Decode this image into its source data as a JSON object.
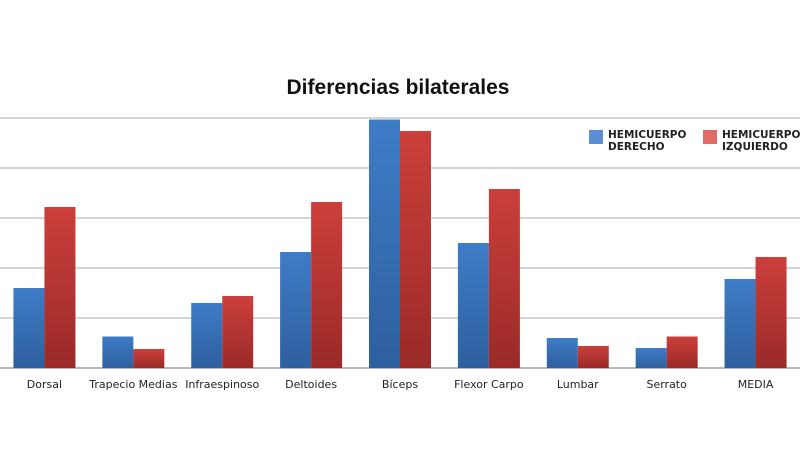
{
  "chart_data": {
    "type": "bar",
    "title": "Diferencias bilaterales",
    "xlabel": "",
    "ylabel": "",
    "categories": [
      "Dorsal",
      "Trapecio Medias",
      "Infraespinoso",
      "Deltoides",
      "Bíceps",
      "Flexor Carpo",
      "Lumbar",
      "Serrato",
      "MEDIA"
    ],
    "series": [
      {
        "name": "HEMICUERPO DERECHO",
        "values": [
          1.6,
          0.63,
          1.3,
          2.32,
          4.97,
          2.5,
          0.6,
          0.4,
          1.78
        ]
      },
      {
        "name": "HEMICUERPO IZQUIERDO",
        "values": [
          3.22,
          0.38,
          1.44,
          3.32,
          4.74,
          3.58,
          0.44,
          0.63,
          2.22
        ]
      }
    ],
    "ylim": [
      0,
      5
    ],
    "grid": true,
    "legend_position": "top-right",
    "colors": {
      "derecho": "#3d77c2",
      "izquierdo": "#c43a37",
      "legend_derecho": "#5b8fd5",
      "legend_izquierdo": "#e06c68",
      "grid": "#8c8c8c"
    }
  }
}
